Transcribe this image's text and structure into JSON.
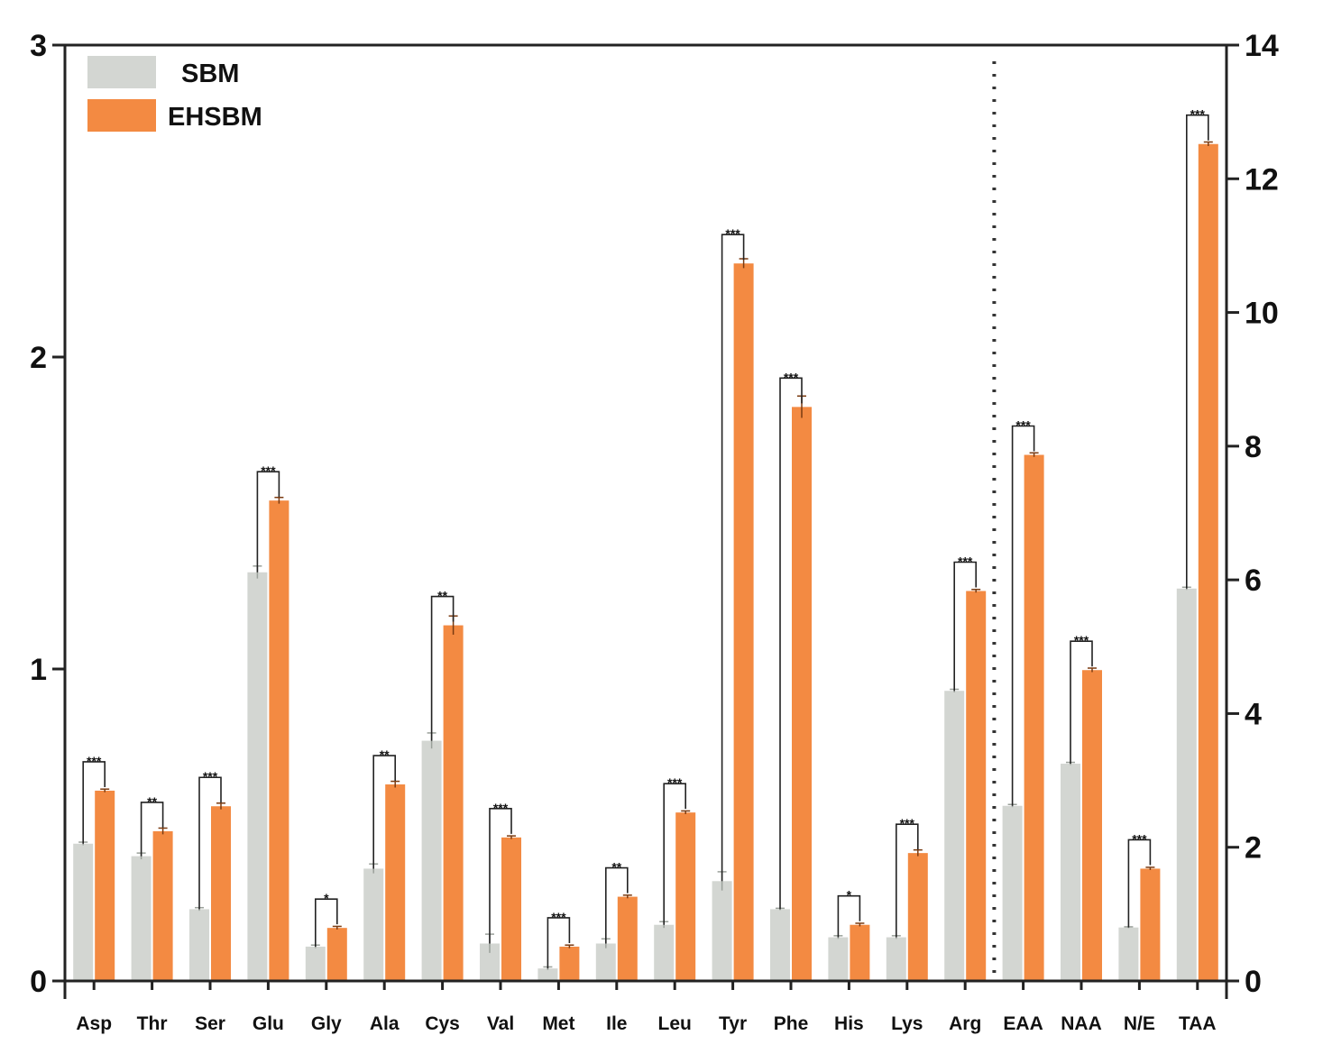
{
  "chart_data": {
    "type": "bar",
    "categories": [
      "Asp",
      "Thr",
      "Ser",
      "Glu",
      "Gly",
      "Ala",
      "Cys",
      "Val",
      "Met",
      "Ile",
      "Leu",
      "Tyr",
      "Phe",
      "His",
      "Lys",
      "Arg",
      "EAA",
      "NAA",
      "N/E",
      "TAA"
    ],
    "left_axis_categories": 16,
    "divider_after_category": "Arg",
    "y_left": {
      "min": 0,
      "max": 3,
      "ticks": [
        0,
        1,
        2,
        3
      ]
    },
    "y_right": {
      "min": 0,
      "max": 14,
      "ticks": [
        0,
        2,
        4,
        6,
        8,
        10,
        12,
        14
      ]
    },
    "series": [
      {
        "name": "SBM",
        "color": "#d3d6d2",
        "values": [
          0.44,
          0.4,
          0.23,
          1.31,
          0.11,
          0.36,
          0.77,
          0.12,
          0.04,
          0.12,
          0.18,
          0.32,
          0.23,
          0.14,
          0.14,
          0.93,
          2.62,
          3.25,
          0.8,
          5.87
        ],
        "errors": [
          0.005,
          0.01,
          0.005,
          0.02,
          0.005,
          0.015,
          0.025,
          0.03,
          0.005,
          0.015,
          0.01,
          0.03,
          0.003,
          0.005,
          0.005,
          0.005,
          0.02,
          0.02,
          0.01,
          0.02
        ]
      },
      {
        "name": "EHSBM",
        "color": "#f38a42",
        "values": [
          0.61,
          0.48,
          0.56,
          1.54,
          0.17,
          0.63,
          1.14,
          0.46,
          0.11,
          0.27,
          0.54,
          2.3,
          1.84,
          0.18,
          0.41,
          1.25,
          7.87,
          4.65,
          1.68,
          12.52
        ],
        "errors": [
          0.005,
          0.01,
          0.01,
          0.01,
          0.005,
          0.01,
          0.03,
          0.005,
          0.005,
          0.005,
          0.005,
          0.015,
          0.035,
          0.005,
          0.01,
          0.005,
          0.03,
          0.03,
          0.02,
          0.03
        ]
      }
    ],
    "significance": [
      "***",
      "**",
      "***",
      "***",
      "*",
      "**",
      "**",
      "***",
      "***",
      "**",
      "***",
      "***",
      "***",
      "*",
      "***",
      "***",
      "***",
      "***",
      "***",
      "***"
    ],
    "legend": {
      "position": "top-left",
      "entries": [
        "SBM",
        "EHSBM"
      ]
    },
    "grid": false
  }
}
